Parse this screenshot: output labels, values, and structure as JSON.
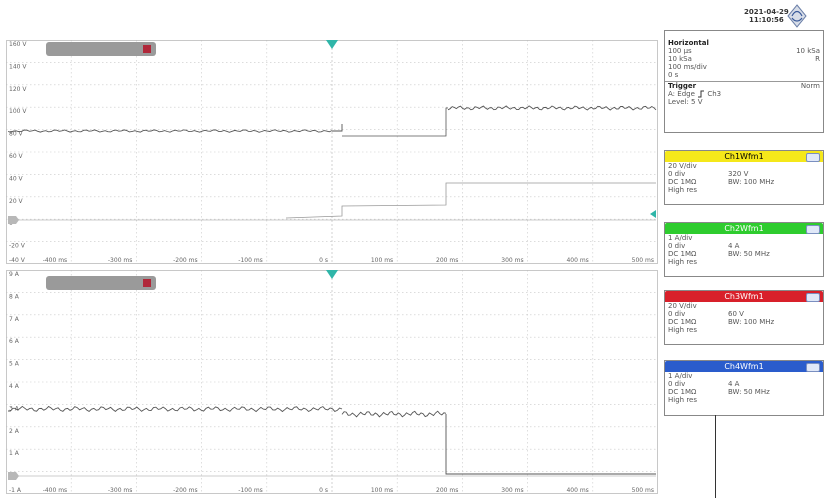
{
  "header": {
    "date": "2021-04-29",
    "time": "11:10:56",
    "logo_icon": "rohde-schwarz-diamond-icon"
  },
  "horizontal": {
    "title": "Horizontal",
    "time_scale": "100 µs",
    "sample_rate": "10 kSa",
    "sample_rate_right": "10 kSa",
    "right_flag": "R",
    "time_div": "100 ms/div",
    "offset": "0 s"
  },
  "trigger": {
    "title": "Trigger",
    "mode": "Norm",
    "type_label": "A:",
    "type": "Edge",
    "slope_icon": "rising-edge-icon",
    "source": "Ch3",
    "level": "Level: 5 V"
  },
  "channels": [
    {
      "name": "Ch1Wfm1",
      "color": "#f5e81a",
      "text_color": "#000000",
      "scale": "20 V/div",
      "pos": "0 div",
      "value": "320 V",
      "coupling": "DC 1MΩ",
      "bw": "BW: 100 MHz",
      "mode": "High res"
    },
    {
      "name": "Ch2Wfm1",
      "color": "#2ecc2e",
      "text_color": "#ffffff",
      "scale": "1 A/div",
      "pos": "0 div",
      "value": "4 A",
      "coupling": "DC 1MΩ",
      "bw": "BW: 50 MHz",
      "mode": "High res"
    },
    {
      "name": "Ch3Wfm1",
      "color": "#d8202a",
      "text_color": "#ffffff",
      "scale": "20 V/div",
      "pos": "0 div",
      "value": "60 V",
      "coupling": "DC 1MΩ",
      "bw": "BW: 100 MHz",
      "mode": "High res"
    },
    {
      "name": "Ch4Wfm1",
      "color": "#2a5ccc",
      "text_color": "#ffffff",
      "scale": "1 A/div",
      "pos": "0 div",
      "value": "4 A",
      "coupling": "DC 1MΩ",
      "bw": "BW: 50 MHz",
      "mode": "High res"
    }
  ],
  "plot1": {
    "y_labels": [
      "160 V",
      "140 V",
      "120 V",
      "100 V",
      "80 V",
      "60 V",
      "40 V",
      "20 V",
      "0",
      "-20 V",
      "-40 V"
    ],
    "x_labels": [
      "-400 ms",
      "-300 ms",
      "-200 ms",
      "-100 ms",
      "0 s",
      "100 ms",
      "200 ms",
      "300 ms",
      "400 ms",
      "500 ms"
    ],
    "trace_step_color": "#555555",
    "trace_ref_color": "#999999"
  },
  "plot2": {
    "y_labels": [
      "9 A",
      "8 A",
      "7 A",
      "6 A",
      "5 A",
      "4 A",
      "3 A",
      "2 A",
      "1 A",
      "0",
      "-1 A"
    ],
    "x_labels": [
      "-400 ms",
      "-300 ms",
      "-200 ms",
      "-100 ms",
      "0 s",
      "100 ms",
      "200 ms",
      "300 ms",
      "400 ms",
      "500 ms"
    ],
    "trace_color": "#555555"
  }
}
